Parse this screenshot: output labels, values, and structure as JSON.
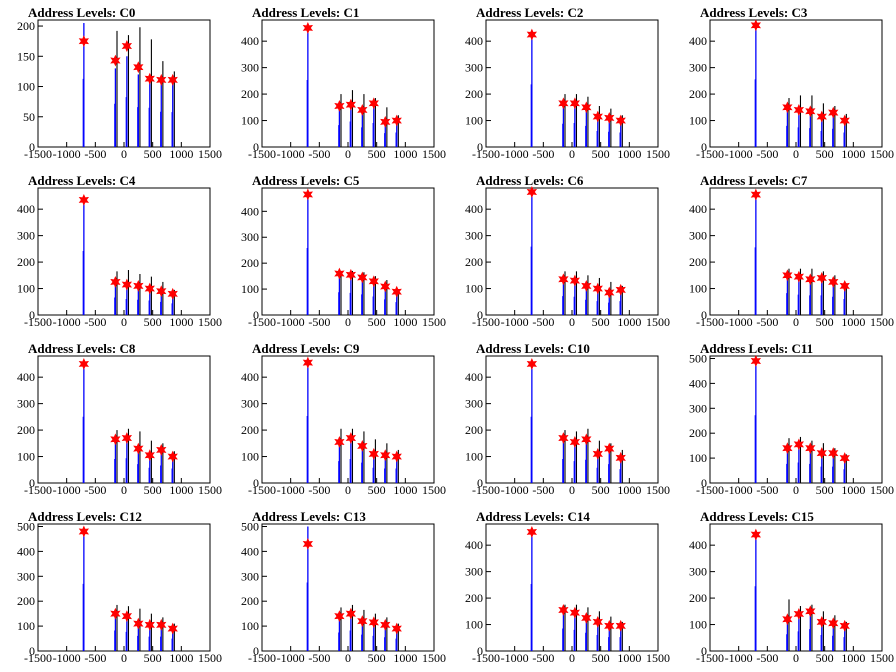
{
  "chart_data": [
    {
      "type": "bar",
      "title": "Address Levels: C0",
      "xlim": [
        -1500,
        1500
      ],
      "ylim": [
        0,
        210
      ],
      "xticks": [
        -1500,
        -1000,
        -500,
        0,
        500,
        1000,
        1500
      ],
      "yticks": [
        0,
        50,
        100,
        150,
        200
      ],
      "peaks": [
        {
          "x": -700,
          "blue": 205,
          "black": 0,
          "marker": 175
        },
        {
          "x": -150,
          "blue": 130,
          "black": 192,
          "marker": 143
        },
        {
          "x": 50,
          "blue": 150,
          "black": 185,
          "marker": 167
        },
        {
          "x": 250,
          "blue": 120,
          "black": 198,
          "marker": 132
        },
        {
          "x": 450,
          "blue": 118,
          "black": 178,
          "marker": 113
        },
        {
          "x": 650,
          "blue": 106,
          "black": 142,
          "marker": 111
        },
        {
          "x": 850,
          "blue": 105,
          "black": 125,
          "marker": 111
        }
      ]
    },
    {
      "type": "bar",
      "title": "Address Levels: C1",
      "xlim": [
        -1500,
        1500
      ],
      "ylim": [
        0,
        480
      ],
      "xticks": [
        -1500,
        -1000,
        -500,
        0,
        500,
        1000,
        1500
      ],
      "yticks": [
        0,
        100,
        200,
        300,
        400
      ],
      "peaks": [
        {
          "x": -700,
          "blue": 460,
          "black": 0,
          "marker": 450
        },
        {
          "x": -150,
          "blue": 150,
          "black": 200,
          "marker": 155
        },
        {
          "x": 50,
          "blue": 175,
          "black": 215,
          "marker": 160
        },
        {
          "x": 250,
          "blue": 135,
          "black": 200,
          "marker": 140
        },
        {
          "x": 450,
          "blue": 165,
          "black": 185,
          "marker": 165
        },
        {
          "x": 650,
          "blue": 95,
          "black": 150,
          "marker": 95
        },
        {
          "x": 850,
          "blue": 100,
          "black": 120,
          "marker": 100
        }
      ]
    },
    {
      "type": "bar",
      "title": "Address Levels: C2",
      "xlim": [
        -1500,
        1500
      ],
      "ylim": [
        0,
        480
      ],
      "xticks": [
        -1500,
        -1000,
        -500,
        0,
        500,
        1000,
        1500
      ],
      "yticks": [
        0,
        100,
        200,
        300,
        400
      ],
      "peaks": [
        {
          "x": -700,
          "blue": 430,
          "black": 0,
          "marker": 425
        },
        {
          "x": -150,
          "blue": 160,
          "black": 200,
          "marker": 165
        },
        {
          "x": 50,
          "blue": 165,
          "black": 200,
          "marker": 165
        },
        {
          "x": 250,
          "blue": 145,
          "black": 190,
          "marker": 150
        },
        {
          "x": 450,
          "blue": 110,
          "black": 155,
          "marker": 115
        },
        {
          "x": 650,
          "blue": 105,
          "black": 145,
          "marker": 110
        },
        {
          "x": 850,
          "blue": 100,
          "black": 120,
          "marker": 100
        }
      ]
    },
    {
      "type": "bar",
      "title": "Address Levels: C3",
      "xlim": [
        -1500,
        1500
      ],
      "ylim": [
        0,
        480
      ],
      "xticks": [
        -1500,
        -1000,
        -500,
        0,
        500,
        1000,
        1500
      ],
      "yticks": [
        0,
        100,
        200,
        300,
        400
      ],
      "peaks": [
        {
          "x": -700,
          "blue": 465,
          "black": 0,
          "marker": 460
        },
        {
          "x": -150,
          "blue": 145,
          "black": 185,
          "marker": 150
        },
        {
          "x": 50,
          "blue": 135,
          "black": 195,
          "marker": 140
        },
        {
          "x": 250,
          "blue": 130,
          "black": 195,
          "marker": 135
        },
        {
          "x": 450,
          "blue": 110,
          "black": 165,
          "marker": 115
        },
        {
          "x": 650,
          "blue": 125,
          "black": 155,
          "marker": 130
        },
        {
          "x": 850,
          "blue": 100,
          "black": 125,
          "marker": 100
        }
      ]
    },
    {
      "type": "bar",
      "title": "Address Levels: C4",
      "xlim": [
        -1500,
        1500
      ],
      "ylim": [
        0,
        480
      ],
      "xticks": [
        -1500,
        -1000,
        -500,
        0,
        500,
        1000,
        1500
      ],
      "yticks": [
        0,
        100,
        200,
        300,
        400
      ],
      "peaks": [
        {
          "x": -700,
          "blue": 440,
          "black": 0,
          "marker": 435
        },
        {
          "x": -150,
          "blue": 120,
          "black": 165,
          "marker": 125
        },
        {
          "x": 50,
          "blue": 110,
          "black": 170,
          "marker": 115
        },
        {
          "x": 250,
          "blue": 105,
          "black": 155,
          "marker": 110
        },
        {
          "x": 450,
          "blue": 100,
          "black": 145,
          "marker": 100
        },
        {
          "x": 650,
          "blue": 90,
          "black": 125,
          "marker": 90
        },
        {
          "x": 850,
          "blue": 80,
          "black": 95,
          "marker": 80
        }
      ]
    },
    {
      "type": "bar",
      "title": "Address Levels: C5",
      "xlim": [
        -1500,
        1500
      ],
      "ylim": [
        0,
        490
      ],
      "xticks": [
        -1500,
        -1000,
        -500,
        0,
        500,
        1000,
        1500
      ],
      "yticks": [
        0,
        100,
        200,
        300,
        400
      ],
      "peaks": [
        {
          "x": -700,
          "blue": 470,
          "black": 0,
          "marker": 465
        },
        {
          "x": -150,
          "blue": 160,
          "black": 170,
          "marker": 160
        },
        {
          "x": 50,
          "blue": 155,
          "black": 170,
          "marker": 155
        },
        {
          "x": 250,
          "blue": 145,
          "black": 165,
          "marker": 145
        },
        {
          "x": 450,
          "blue": 130,
          "black": 150,
          "marker": 130
        },
        {
          "x": 650,
          "blue": 110,
          "black": 135,
          "marker": 110
        },
        {
          "x": 850,
          "blue": 90,
          "black": 100,
          "marker": 90
        }
      ]
    },
    {
      "type": "bar",
      "title": "Address Levels: C6",
      "xlim": [
        -1500,
        1500
      ],
      "ylim": [
        0,
        480
      ],
      "xticks": [
        -1500,
        -1000,
        -500,
        0,
        500,
        1000,
        1500
      ],
      "yticks": [
        0,
        100,
        200,
        300,
        400
      ],
      "peaks": [
        {
          "x": -700,
          "blue": 470,
          "black": 0,
          "marker": 465
        },
        {
          "x": -150,
          "blue": 130,
          "black": 165,
          "marker": 135
        },
        {
          "x": 50,
          "blue": 125,
          "black": 165,
          "marker": 130
        },
        {
          "x": 250,
          "blue": 105,
          "black": 150,
          "marker": 110
        },
        {
          "x": 450,
          "blue": 95,
          "black": 140,
          "marker": 100
        },
        {
          "x": 650,
          "blue": 85,
          "black": 125,
          "marker": 85
        },
        {
          "x": 850,
          "blue": 95,
          "black": 110,
          "marker": 95
        }
      ]
    },
    {
      "type": "bar",
      "title": "Address Levels: C7",
      "xlim": [
        -1500,
        1500
      ],
      "ylim": [
        0,
        480
      ],
      "xticks": [
        -1500,
        -1000,
        -500,
        0,
        500,
        1000,
        1500
      ],
      "yticks": [
        0,
        100,
        200,
        300,
        400
      ],
      "peaks": [
        {
          "x": -700,
          "blue": 465,
          "black": 0,
          "marker": 455
        },
        {
          "x": -150,
          "blue": 150,
          "black": 175,
          "marker": 150
        },
        {
          "x": 50,
          "blue": 140,
          "black": 175,
          "marker": 145
        },
        {
          "x": 250,
          "blue": 135,
          "black": 175,
          "marker": 135
        },
        {
          "x": 450,
          "blue": 135,
          "black": 165,
          "marker": 140
        },
        {
          "x": 650,
          "blue": 125,
          "black": 150,
          "marker": 125
        },
        {
          "x": 850,
          "blue": 110,
          "black": 120,
          "marker": 110
        }
      ]
    },
    {
      "type": "bar",
      "title": "Address Levels: C8",
      "xlim": [
        -1500,
        1500
      ],
      "ylim": [
        0,
        480
      ],
      "xticks": [
        -1500,
        -1000,
        -500,
        0,
        500,
        1000,
        1500
      ],
      "yticks": [
        0,
        100,
        200,
        300,
        400
      ],
      "peaks": [
        {
          "x": -700,
          "blue": 455,
          "black": 0,
          "marker": 450
        },
        {
          "x": -150,
          "blue": 165,
          "black": 200,
          "marker": 165
        },
        {
          "x": 50,
          "blue": 170,
          "black": 205,
          "marker": 170
        },
        {
          "x": 250,
          "blue": 130,
          "black": 195,
          "marker": 130
        },
        {
          "x": 450,
          "blue": 105,
          "black": 160,
          "marker": 105
        },
        {
          "x": 650,
          "blue": 120,
          "black": 150,
          "marker": 125
        },
        {
          "x": 850,
          "blue": 100,
          "black": 120,
          "marker": 100
        }
      ]
    },
    {
      "type": "bar",
      "title": "Address Levels: C9",
      "xlim": [
        -1500,
        1500
      ],
      "ylim": [
        0,
        480
      ],
      "xticks": [
        -1500,
        -1000,
        -500,
        0,
        500,
        1000,
        1500
      ],
      "yticks": [
        0,
        100,
        200,
        300,
        400
      ],
      "peaks": [
        {
          "x": -700,
          "blue": 460,
          "black": 0,
          "marker": 455
        },
        {
          "x": -150,
          "blue": 150,
          "black": 205,
          "marker": 155
        },
        {
          "x": 50,
          "blue": 165,
          "black": 205,
          "marker": 170
        },
        {
          "x": 250,
          "blue": 140,
          "black": 195,
          "marker": 140
        },
        {
          "x": 450,
          "blue": 105,
          "black": 165,
          "marker": 110
        },
        {
          "x": 650,
          "blue": 100,
          "black": 150,
          "marker": 105
        },
        {
          "x": 850,
          "blue": 100,
          "black": 125,
          "marker": 100
        }
      ]
    },
    {
      "type": "bar",
      "title": "Address Levels: C10",
      "xlim": [
        -1500,
        1500
      ],
      "ylim": [
        0,
        480
      ],
      "xticks": [
        -1500,
        -1000,
        -500,
        0,
        500,
        1000,
        1500
      ],
      "yticks": [
        0,
        100,
        200,
        300,
        400
      ],
      "peaks": [
        {
          "x": -700,
          "blue": 455,
          "black": 0,
          "marker": 450
        },
        {
          "x": -150,
          "blue": 165,
          "black": 200,
          "marker": 170
        },
        {
          "x": 50,
          "blue": 150,
          "black": 195,
          "marker": 155
        },
        {
          "x": 250,
          "blue": 160,
          "black": 205,
          "marker": 165
        },
        {
          "x": 450,
          "blue": 105,
          "black": 160,
          "marker": 110
        },
        {
          "x": 650,
          "blue": 130,
          "black": 150,
          "marker": 130
        },
        {
          "x": 850,
          "blue": 95,
          "black": 125,
          "marker": 95
        }
      ]
    },
    {
      "type": "bar",
      "title": "Address Levels: C11",
      "xlim": [
        -1500,
        1500
      ],
      "ylim": [
        0,
        510
      ],
      "xticks": [
        -1500,
        -1000,
        -500,
        0,
        500,
        1000,
        1500
      ],
      "yticks": [
        0,
        100,
        200,
        300,
        400,
        500
      ],
      "peaks": [
        {
          "x": -700,
          "blue": 495,
          "black": 0,
          "marker": 490
        },
        {
          "x": -150,
          "blue": 140,
          "black": 180,
          "marker": 140
        },
        {
          "x": 50,
          "blue": 150,
          "black": 185,
          "marker": 155
        },
        {
          "x": 250,
          "blue": 140,
          "black": 170,
          "marker": 140
        },
        {
          "x": 450,
          "blue": 120,
          "black": 160,
          "marker": 120
        },
        {
          "x": 650,
          "blue": 120,
          "black": 140,
          "marker": 120
        },
        {
          "x": 850,
          "blue": 100,
          "black": 115,
          "marker": 100
        }
      ]
    },
    {
      "type": "bar",
      "title": "Address Levels: C12",
      "xlim": [
        -1500,
        1500
      ],
      "ylim": [
        0,
        510
      ],
      "xticks": [
        -1500,
        -1000,
        -500,
        0,
        500,
        1000,
        1500
      ],
      "yticks": [
        0,
        100,
        200,
        300,
        400,
        500
      ],
      "peaks": [
        {
          "x": -700,
          "blue": 490,
          "black": 0,
          "marker": 480
        },
        {
          "x": -150,
          "blue": 150,
          "black": 185,
          "marker": 150
        },
        {
          "x": 50,
          "blue": 140,
          "black": 180,
          "marker": 140
        },
        {
          "x": 250,
          "blue": 110,
          "black": 170,
          "marker": 110
        },
        {
          "x": 450,
          "blue": 105,
          "black": 150,
          "marker": 105
        },
        {
          "x": 650,
          "blue": 105,
          "black": 135,
          "marker": 105
        },
        {
          "x": 850,
          "blue": 90,
          "black": 110,
          "marker": 90
        }
      ]
    },
    {
      "type": "bar",
      "title": "Address Levels: C13",
      "xlim": [
        -1500,
        1500
      ],
      "ylim": [
        0,
        510
      ],
      "xticks": [
        -1500,
        -1000,
        -500,
        0,
        500,
        1000,
        1500
      ],
      "yticks": [
        0,
        100,
        200,
        300,
        400,
        500
      ],
      "peaks": [
        {
          "x": -700,
          "blue": 500,
          "black": 0,
          "marker": 430
        },
        {
          "x": -150,
          "blue": 135,
          "black": 175,
          "marker": 140
        },
        {
          "x": 50,
          "blue": 150,
          "black": 185,
          "marker": 150
        },
        {
          "x": 250,
          "blue": 120,
          "black": 165,
          "marker": 120
        },
        {
          "x": 450,
          "blue": 110,
          "black": 150,
          "marker": 115
        },
        {
          "x": 650,
          "blue": 100,
          "black": 135,
          "marker": 105
        },
        {
          "x": 850,
          "blue": 90,
          "black": 110,
          "marker": 90
        }
      ]
    },
    {
      "type": "bar",
      "title": "Address Levels: C14",
      "xlim": [
        -1500,
        1500
      ],
      "ylim": [
        0,
        480
      ],
      "xticks": [
        -1500,
        -1000,
        -500,
        0,
        500,
        1000,
        1500
      ],
      "yticks": [
        0,
        100,
        200,
        300,
        400
      ],
      "peaks": [
        {
          "x": -700,
          "blue": 460,
          "black": 0,
          "marker": 450
        },
        {
          "x": -150,
          "blue": 155,
          "black": 175,
          "marker": 155
        },
        {
          "x": 50,
          "blue": 145,
          "black": 175,
          "marker": 145
        },
        {
          "x": 250,
          "blue": 125,
          "black": 165,
          "marker": 125
        },
        {
          "x": 450,
          "blue": 110,
          "black": 150,
          "marker": 110
        },
        {
          "x": 650,
          "blue": 95,
          "black": 130,
          "marker": 95
        },
        {
          "x": 850,
          "blue": 95,
          "black": 110,
          "marker": 95
        }
      ]
    },
    {
      "type": "bar",
      "title": "Address Levels: C15",
      "xlim": [
        -1500,
        1500
      ],
      "ylim": [
        0,
        480
      ],
      "xticks": [
        -1500,
        -1000,
        -500,
        0,
        500,
        1000,
        1500
      ],
      "yticks": [
        0,
        100,
        200,
        300,
        400
      ],
      "peaks": [
        {
          "x": -700,
          "blue": 445,
          "black": 0,
          "marker": 440
        },
        {
          "x": -150,
          "blue": 115,
          "black": 195,
          "marker": 120
        },
        {
          "x": 50,
          "blue": 135,
          "black": 170,
          "marker": 140
        },
        {
          "x": 250,
          "blue": 150,
          "black": 175,
          "marker": 150
        },
        {
          "x": 450,
          "blue": 110,
          "black": 150,
          "marker": 110
        },
        {
          "x": 650,
          "blue": 105,
          "black": 135,
          "marker": 105
        },
        {
          "x": 850,
          "blue": 95,
          "black": 110,
          "marker": 95
        }
      ]
    }
  ],
  "colors": {
    "blue_series": "#0000ff",
    "black_series": "#000000",
    "marker": "#ff0000",
    "axis": "#000000"
  }
}
